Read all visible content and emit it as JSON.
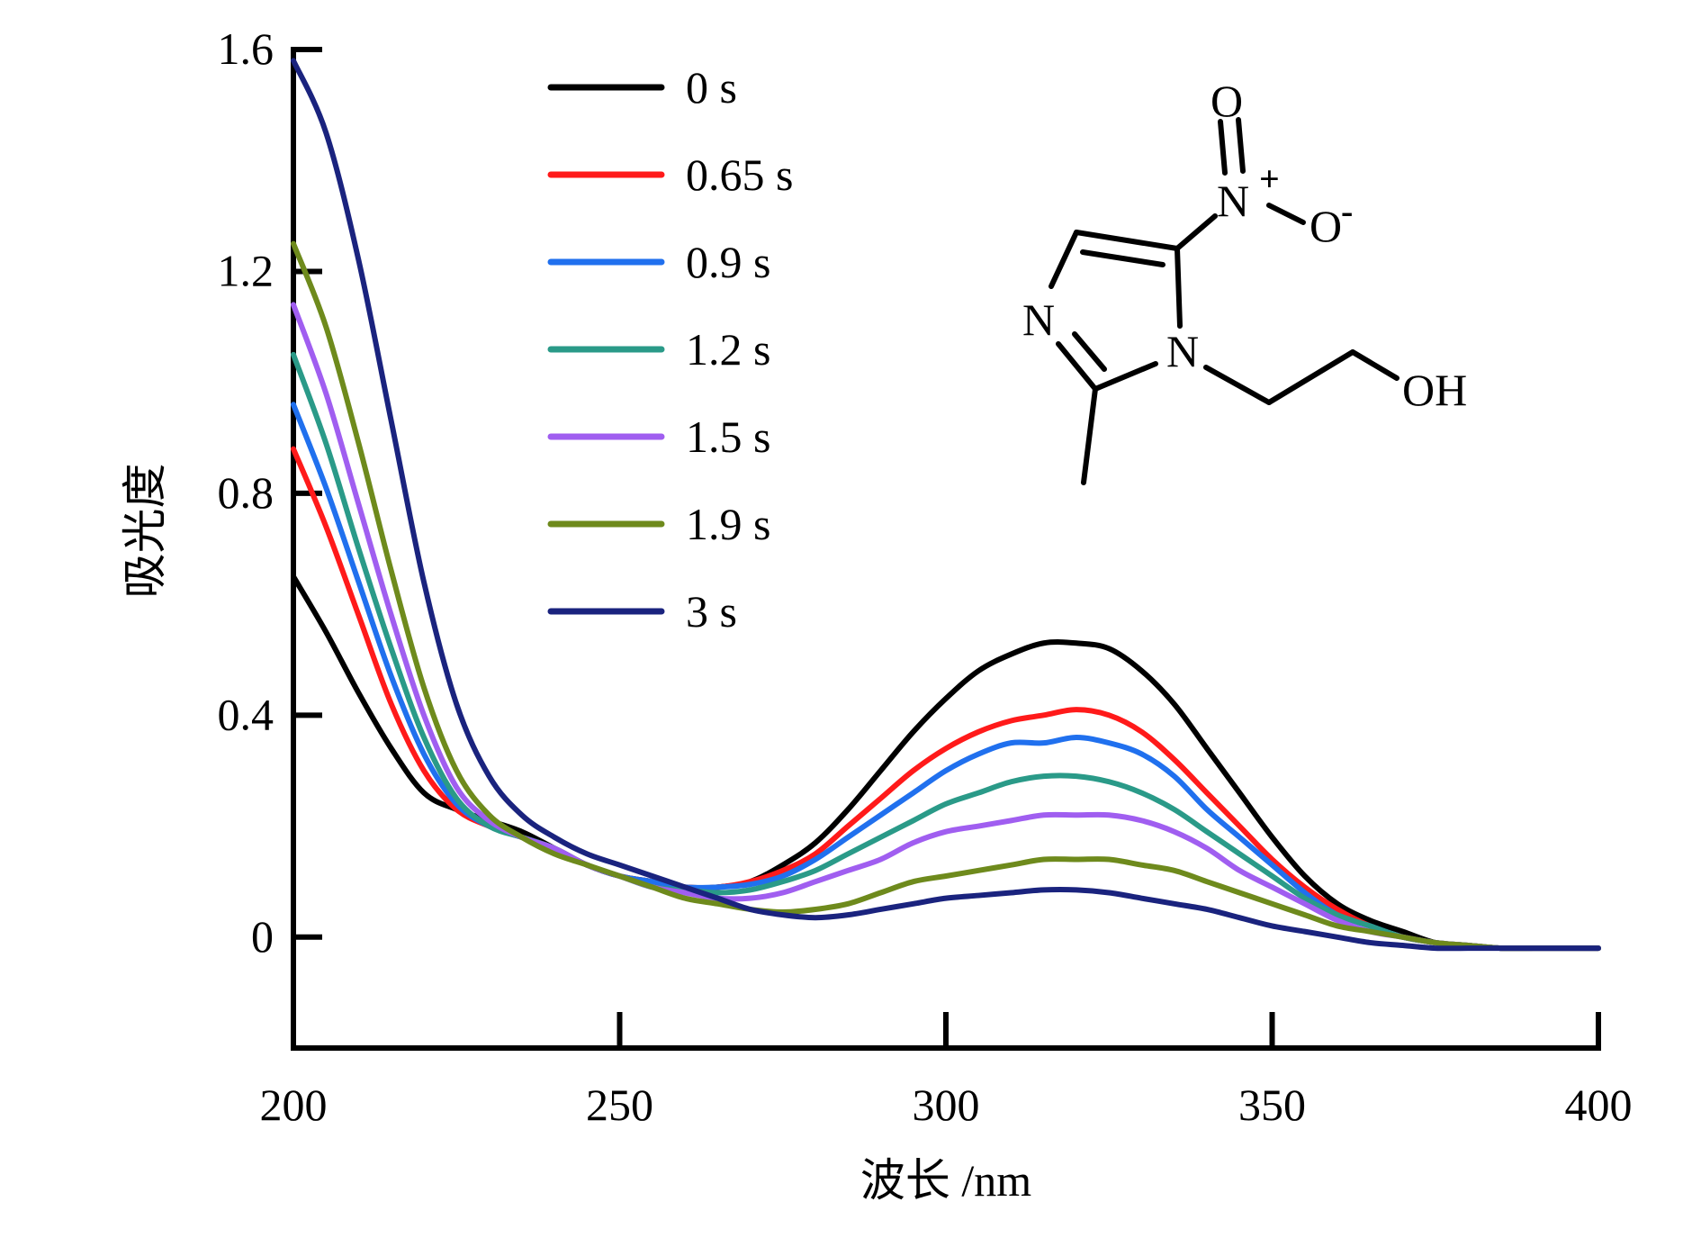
{
  "chart_data": {
    "type": "line",
    "xlabel": "波长 /nm",
    "ylabel": "吸光度",
    "xlim": [
      200,
      400
    ],
    "ylim": [
      -0.2,
      1.6
    ],
    "xticks": [
      200,
      250,
      300,
      350,
      400
    ],
    "yticks": [
      0,
      0.4,
      0.8,
      1.2,
      1.6
    ],
    "ytick_labels": [
      "0",
      "0.4",
      "0.8",
      "1.2",
      "1.6"
    ],
    "grid": false,
    "legend_position": "top-center",
    "x": [
      200,
      205,
      210,
      215,
      220,
      225,
      230,
      235,
      240,
      245,
      250,
      255,
      260,
      265,
      270,
      275,
      280,
      285,
      290,
      295,
      300,
      305,
      310,
      315,
      320,
      325,
      330,
      335,
      340,
      345,
      350,
      355,
      360,
      365,
      370,
      375,
      380,
      385,
      390,
      395,
      400
    ],
    "series": [
      {
        "name": "0 s",
        "color": "#000000",
        "values": [
          0.65,
          0.55,
          0.44,
          0.34,
          0.26,
          0.23,
          0.21,
          0.19,
          0.16,
          0.13,
          0.11,
          0.1,
          0.09,
          0.09,
          0.1,
          0.13,
          0.17,
          0.23,
          0.3,
          0.37,
          0.43,
          0.48,
          0.51,
          0.53,
          0.53,
          0.52,
          0.48,
          0.42,
          0.34,
          0.26,
          0.18,
          0.11,
          0.06,
          0.03,
          0.01,
          -0.01,
          -0.015,
          -0.02,
          -0.02,
          -0.02,
          -0.02
        ]
      },
      {
        "name": "0.65 s",
        "color": "#ff1a1a",
        "values": [
          0.88,
          0.74,
          0.58,
          0.42,
          0.3,
          0.23,
          0.2,
          0.18,
          0.16,
          0.13,
          0.11,
          0.1,
          0.09,
          0.09,
          0.1,
          0.12,
          0.15,
          0.2,
          0.25,
          0.3,
          0.34,
          0.37,
          0.39,
          0.4,
          0.41,
          0.4,
          0.37,
          0.32,
          0.26,
          0.2,
          0.14,
          0.09,
          0.05,
          0.02,
          0.0,
          -0.01,
          -0.015,
          -0.02,
          -0.02,
          -0.02,
          -0.02
        ]
      },
      {
        "name": "0.9 s",
        "color": "#2070ee",
        "values": [
          0.96,
          0.81,
          0.64,
          0.47,
          0.33,
          0.24,
          0.2,
          0.18,
          0.16,
          0.13,
          0.11,
          0.1,
          0.09,
          0.09,
          0.095,
          0.11,
          0.14,
          0.18,
          0.22,
          0.26,
          0.3,
          0.33,
          0.35,
          0.35,
          0.36,
          0.35,
          0.33,
          0.29,
          0.23,
          0.18,
          0.13,
          0.08,
          0.04,
          0.02,
          0.0,
          -0.01,
          -0.015,
          -0.02,
          -0.02,
          -0.02,
          -0.02
        ]
      },
      {
        "name": "1.2 s",
        "color": "#2a9a88",
        "values": [
          1.05,
          0.89,
          0.7,
          0.52,
          0.36,
          0.25,
          0.2,
          0.18,
          0.16,
          0.13,
          0.11,
          0.09,
          0.085,
          0.08,
          0.085,
          0.1,
          0.12,
          0.15,
          0.18,
          0.21,
          0.24,
          0.26,
          0.28,
          0.29,
          0.29,
          0.28,
          0.26,
          0.23,
          0.19,
          0.15,
          0.11,
          0.07,
          0.04,
          0.02,
          0.0,
          -0.01,
          -0.015,
          -0.02,
          -0.02,
          -0.02,
          -0.02
        ]
      },
      {
        "name": "1.5 s",
        "color": "#a05ef0",
        "values": [
          1.14,
          0.98,
          0.78,
          0.58,
          0.4,
          0.27,
          0.21,
          0.18,
          0.16,
          0.13,
          0.11,
          0.09,
          0.08,
          0.07,
          0.07,
          0.08,
          0.1,
          0.12,
          0.14,
          0.17,
          0.19,
          0.2,
          0.21,
          0.22,
          0.22,
          0.22,
          0.21,
          0.19,
          0.16,
          0.12,
          0.09,
          0.06,
          0.03,
          0.01,
          0.0,
          -0.01,
          -0.015,
          -0.02,
          -0.02,
          -0.02,
          -0.02
        ]
      },
      {
        "name": "1.9 s",
        "color": "#6e8a1c",
        "values": [
          1.25,
          1.1,
          0.89,
          0.66,
          0.45,
          0.3,
          0.22,
          0.18,
          0.15,
          0.13,
          0.11,
          0.09,
          0.07,
          0.06,
          0.05,
          0.045,
          0.05,
          0.06,
          0.08,
          0.1,
          0.11,
          0.12,
          0.13,
          0.14,
          0.14,
          0.14,
          0.13,
          0.12,
          0.1,
          0.08,
          0.06,
          0.04,
          0.02,
          0.01,
          0.0,
          -0.01,
          -0.015,
          -0.02,
          -0.02,
          -0.02,
          -0.02
        ]
      },
      {
        "name": "3 s",
        "color": "#1a237e",
        "values": [
          1.58,
          1.45,
          1.22,
          0.93,
          0.64,
          0.42,
          0.29,
          0.22,
          0.18,
          0.15,
          0.13,
          0.11,
          0.09,
          0.07,
          0.05,
          0.04,
          0.035,
          0.04,
          0.05,
          0.06,
          0.07,
          0.075,
          0.08,
          0.085,
          0.085,
          0.08,
          0.07,
          0.06,
          0.05,
          0.035,
          0.02,
          0.01,
          0.0,
          -0.01,
          -0.015,
          -0.02,
          -0.02,
          -0.02,
          -0.02,
          -0.02,
          -0.02
        ]
      }
    ]
  },
  "molecule": {
    "atoms": {
      "o_top": "O",
      "n_nitro": "N",
      "charge_plus": "+",
      "o_right": "O",
      "charge_minus": "-",
      "n_ring_left": "N",
      "n_ring_right": "N",
      "oh": "OH"
    }
  }
}
